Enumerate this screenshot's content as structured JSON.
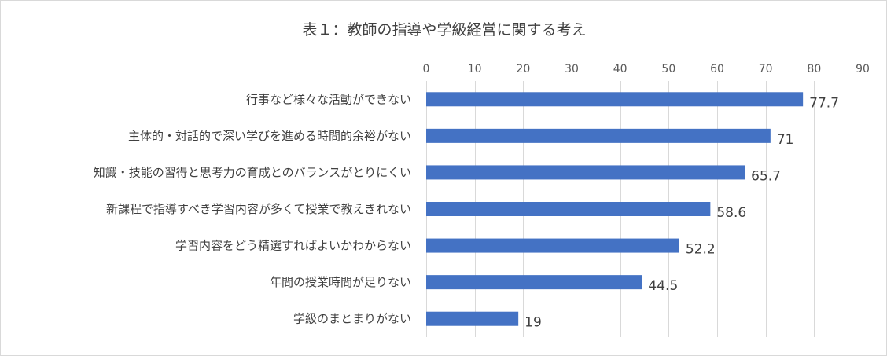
{
  "chart_data": {
    "type": "bar",
    "orientation": "horizontal",
    "title": "表１：教師の指導や学級経営に関する考え",
    "categories": [
      "行事など様々な活動ができない",
      "主体的・対話的で深い学びを進める時間的余裕がない",
      "知識・技能の習得と思考力の育成とのバランスがとりにくい",
      "新課程で指導すべき学習内容が多くて授業で教えきれない",
      "学習内容をどう精選すればよいかわからない",
      "年間の授業時間が足りない",
      "学級のまとまりがない"
    ],
    "values": [
      77.7,
      71,
      65.7,
      58.6,
      52.2,
      44.5,
      19
    ],
    "value_labels": [
      "77.7",
      "71",
      "65.7",
      "58.6",
      "52.2",
      "44.5",
      "19"
    ],
    "xlim": [
      0,
      90
    ],
    "x_ticks": [
      0,
      10,
      20,
      30,
      40,
      50,
      60,
      70,
      80,
      90
    ],
    "x_axis_position": "top",
    "grid": true,
    "legend": "none",
    "bar_color": "#4472c4"
  }
}
